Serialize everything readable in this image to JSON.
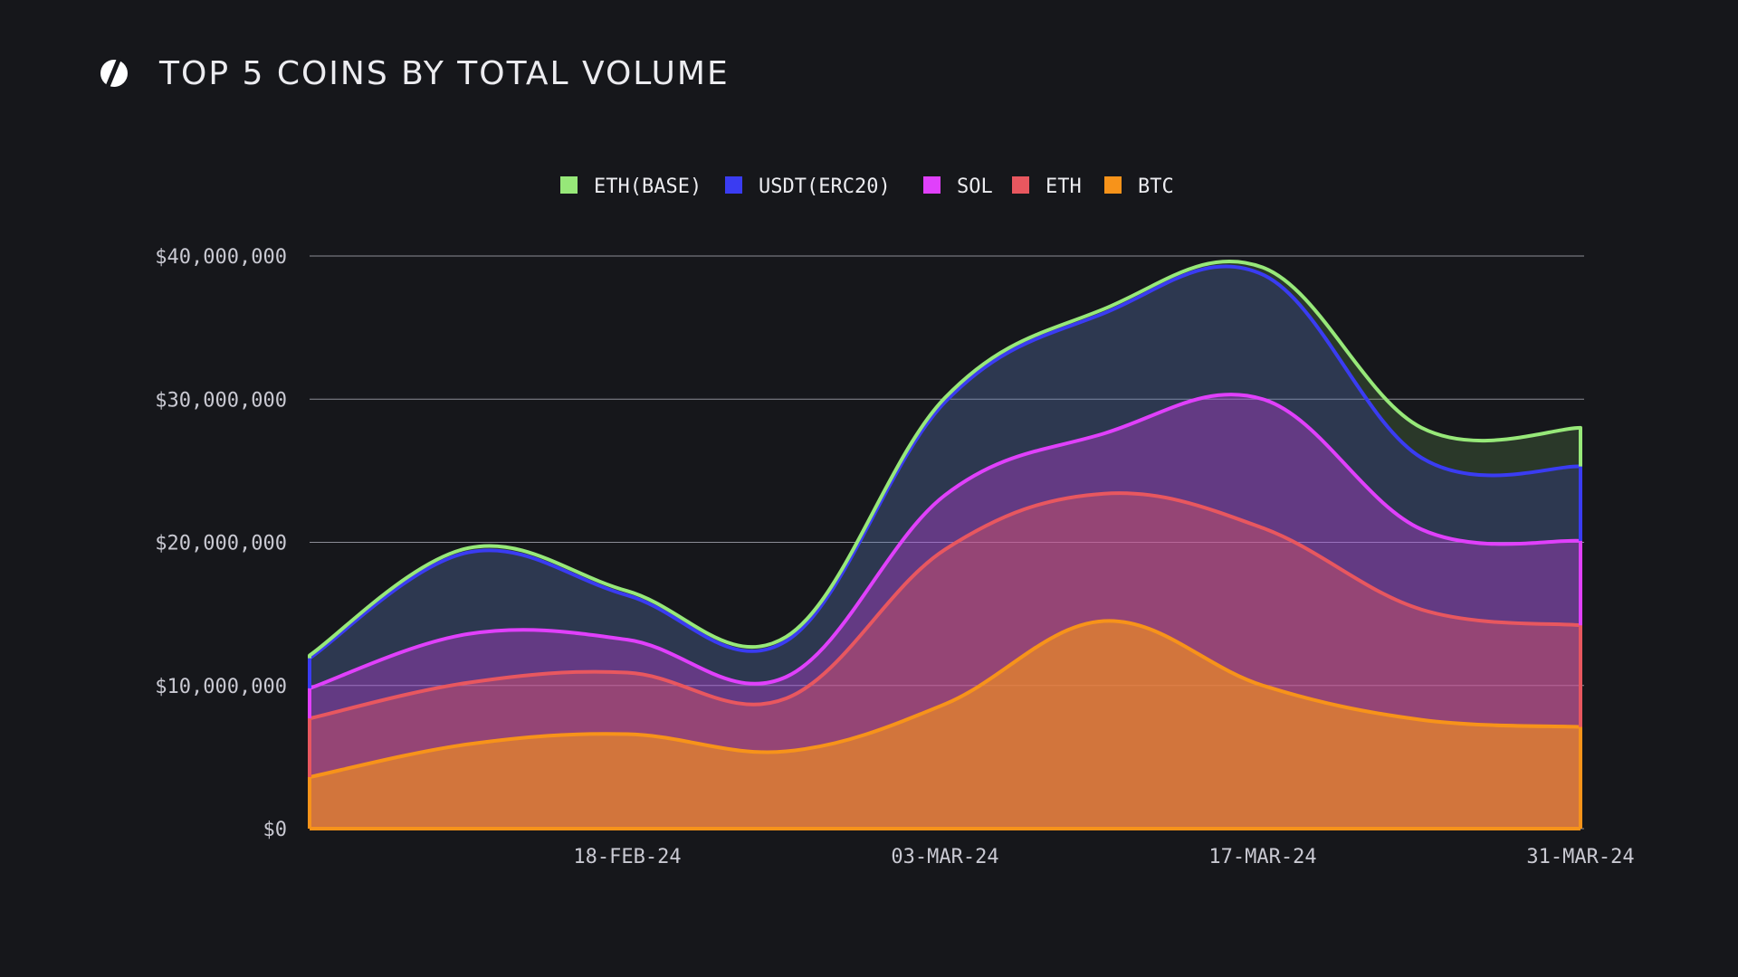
{
  "header": {
    "title": "TOP 5 COINS BY TOTAL VOLUME",
    "logo_icon": "s-logo-icon"
  },
  "chart_data": {
    "type": "area",
    "title": "TOP 5 COINS BY TOTAL VOLUME",
    "stacked": true,
    "legend_position": "top-center",
    "grid": true,
    "x": [
      "04-FEB-24",
      "11-FEB-24",
      "18-FEB-24",
      "25-FEB-24",
      "03-MAR-24",
      "10-MAR-24",
      "17-MAR-24",
      "24-MAR-24",
      "31-MAR-24"
    ],
    "x_tick_labels": [
      "18-FEB-24",
      "03-MAR-24",
      "17-MAR-24",
      "31-MAR-24"
    ],
    "ylim": [
      0,
      40000000
    ],
    "y_tick_labels": [
      "$0",
      "$10,000,000",
      "$20,000,000",
      "$30,000,000",
      "$40,000,000"
    ],
    "series": [
      {
        "name": "BTC",
        "color": "#f7931a",
        "values": [
          3600000,
          5900000,
          6600000,
          5400000,
          8700000,
          14500000,
          10000000,
          7600000,
          7100000
        ]
      },
      {
        "name": "ETH",
        "color": "#e8575f",
        "values": [
          4100000,
          4300000,
          4300000,
          3700000,
          10800000,
          8900000,
          11000000,
          7700000,
          7100000
        ]
      },
      {
        "name": "SOL",
        "color": "#e040fb",
        "values": [
          2100000,
          3400000,
          2300000,
          1500000,
          3800000,
          4200000,
          9000000,
          5600000,
          5900000
        ]
      },
      {
        "name": "USDT(ERC20)",
        "color": "#3a3cf2",
        "values": [
          2100000,
          5700000,
          3100000,
          2500000,
          6500000,
          8400000,
          8700000,
          5000000,
          5200000
        ]
      },
      {
        "name": "ETH(BASE)",
        "color": "#97e879",
        "values": [
          200000,
          300000,
          300000,
          300000,
          300000,
          300000,
          500000,
          2100000,
          2700000
        ]
      }
    ],
    "legend_order": [
      "ETH(BASE)",
      "USDT(ERC20)",
      "SOL",
      "ETH",
      "BTC"
    ]
  }
}
